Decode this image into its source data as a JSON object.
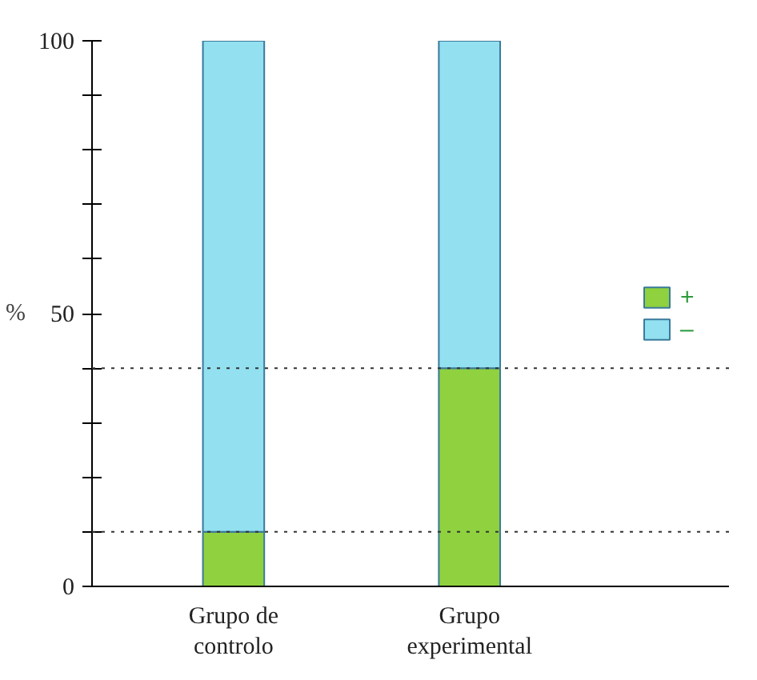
{
  "chart_data": {
    "type": "bar",
    "ylabel": "%",
    "stacked": true,
    "categories": [
      "Grupo de\ncontrolo",
      "Grupo\nexperimental"
    ],
    "series": [
      {
        "name": "+",
        "color": "#8fd13f",
        "values": [
          10,
          40
        ]
      },
      {
        "name": "–",
        "color": "#92e0f0",
        "values": [
          90,
          60
        ]
      }
    ],
    "ylim": [
      0,
      100
    ],
    "yticks": [
      0,
      {
        "value": 10,
        "label": null
      },
      {
        "value": 20,
        "label": null
      },
      {
        "value": 30,
        "label": null
      },
      {
        "value": 40,
        "label": null
      },
      50,
      {
        "value": 60,
        "label": null
      },
      {
        "value": 70,
        "label": null
      },
      {
        "value": 80,
        "label": null
      },
      {
        "value": 90,
        "label": null
      },
      100
    ],
    "ref_lines": [
      {
        "axis": "y",
        "value": 10,
        "label": null,
        "line_style": "dotted",
        "color": "#333333"
      },
      {
        "axis": "y",
        "value": 40,
        "label": null,
        "line_style": "dotted",
        "color": "#333333"
      }
    ],
    "grid": false,
    "legend": "right"
  }
}
